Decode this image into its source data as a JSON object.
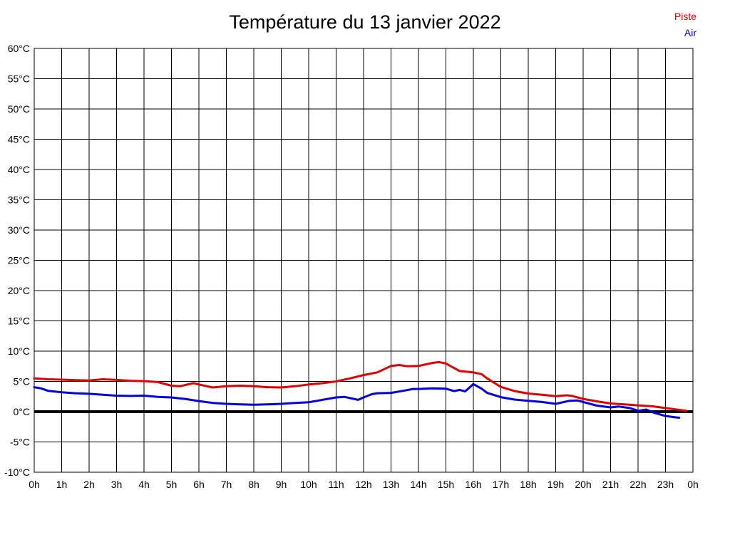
{
  "chart_data": {
    "type": "line",
    "title": "Température du 13 janvier 2022",
    "xlabel": "",
    "ylabel": "",
    "xlim": [
      0,
      24
    ],
    "ylim": [
      -10,
      60
    ],
    "y_step": 5,
    "grid": true,
    "zero_line": true,
    "legend_position": "top-right",
    "x_ticks": [
      "0h",
      "1h",
      "2h",
      "3h",
      "4h",
      "5h",
      "6h",
      "7h",
      "8h",
      "9h",
      "10h",
      "11h",
      "12h",
      "13h",
      "14h",
      "15h",
      "16h",
      "17h",
      "18h",
      "19h",
      "20h",
      "21h",
      "22h",
      "23h",
      "0h"
    ],
    "y_ticks": [
      "60°C",
      "55°C",
      "50°C",
      "45°C",
      "40°C",
      "35°C",
      "30°C",
      "25°C",
      "20°C",
      "15°C",
      "10°C",
      "5°C",
      "0°C",
      "-5°C",
      "-10°C"
    ],
    "series": [
      {
        "name": "Piste",
        "color": "#e00000",
        "points": [
          [
            0,
            5.5
          ],
          [
            0.5,
            5.35
          ],
          [
            1,
            5.3
          ],
          [
            1.5,
            5.2
          ],
          [
            2,
            5.15
          ],
          [
            2.5,
            5.35
          ],
          [
            3,
            5.25
          ],
          [
            3.5,
            5.1
          ],
          [
            4,
            5.05
          ],
          [
            4.5,
            4.9
          ],
          [
            5,
            4.3
          ],
          [
            5.3,
            4.2
          ],
          [
            5.8,
            4.7
          ],
          [
            6,
            4.5
          ],
          [
            6.5,
            4.0
          ],
          [
            7,
            4.2
          ],
          [
            7.5,
            4.3
          ],
          [
            8,
            4.2
          ],
          [
            8.5,
            4.05
          ],
          [
            9,
            4.0
          ],
          [
            9.5,
            4.2
          ],
          [
            10,
            4.5
          ],
          [
            10.5,
            4.7
          ],
          [
            11,
            5.0
          ],
          [
            11.5,
            5.5
          ],
          [
            12,
            6.05
          ],
          [
            12.5,
            6.5
          ],
          [
            13,
            7.55
          ],
          [
            13.3,
            7.7
          ],
          [
            13.6,
            7.5
          ],
          [
            14,
            7.55
          ],
          [
            14.5,
            8.05
          ],
          [
            14.75,
            8.2
          ],
          [
            15,
            7.95
          ],
          [
            15.5,
            6.7
          ],
          [
            16,
            6.5
          ],
          [
            16.3,
            6.2
          ],
          [
            16.5,
            5.5
          ],
          [
            17,
            4.1
          ],
          [
            17.5,
            3.4
          ],
          [
            18,
            3.0
          ],
          [
            18.5,
            2.8
          ],
          [
            19,
            2.55
          ],
          [
            19.4,
            2.7
          ],
          [
            19.6,
            2.6
          ],
          [
            20,
            2.1
          ],
          [
            20.5,
            1.7
          ],
          [
            21,
            1.35
          ],
          [
            21.5,
            1.2
          ],
          [
            22,
            1.05
          ],
          [
            22.5,
            0.9
          ],
          [
            23,
            0.6
          ],
          [
            23.5,
            0.3
          ],
          [
            23.75,
            0.15
          ]
        ]
      },
      {
        "name": "Air",
        "color": "#0000e0",
        "points": [
          [
            0,
            4.05
          ],
          [
            0.25,
            3.85
          ],
          [
            0.5,
            3.45
          ],
          [
            1,
            3.2
          ],
          [
            1.5,
            3.05
          ],
          [
            2,
            2.95
          ],
          [
            2.5,
            2.8
          ],
          [
            3,
            2.65
          ],
          [
            3.5,
            2.6
          ],
          [
            4,
            2.65
          ],
          [
            4.5,
            2.45
          ],
          [
            5,
            2.35
          ],
          [
            5.5,
            2.1
          ],
          [
            6,
            1.75
          ],
          [
            6.5,
            1.45
          ],
          [
            7,
            1.3
          ],
          [
            7.5,
            1.2
          ],
          [
            8,
            1.15
          ],
          [
            8.5,
            1.2
          ],
          [
            9,
            1.3
          ],
          [
            9.5,
            1.45
          ],
          [
            10,
            1.55
          ],
          [
            10.5,
            1.95
          ],
          [
            11,
            2.35
          ],
          [
            11.3,
            2.45
          ],
          [
            11.8,
            1.95
          ],
          [
            12,
            2.35
          ],
          [
            12.3,
            2.9
          ],
          [
            12.5,
            3.05
          ],
          [
            13,
            3.1
          ],
          [
            13.5,
            3.5
          ],
          [
            13.8,
            3.75
          ],
          [
            14,
            3.75
          ],
          [
            14.5,
            3.85
          ],
          [
            15,
            3.8
          ],
          [
            15.3,
            3.4
          ],
          [
            15.5,
            3.6
          ],
          [
            15.7,
            3.35
          ],
          [
            16,
            4.55
          ],
          [
            16.3,
            3.8
          ],
          [
            16.5,
            3.1
          ],
          [
            17,
            2.4
          ],
          [
            17.5,
            2.0
          ],
          [
            18,
            1.8
          ],
          [
            18.5,
            1.6
          ],
          [
            19,
            1.3
          ],
          [
            19.5,
            1.8
          ],
          [
            19.8,
            1.85
          ],
          [
            20,
            1.6
          ],
          [
            20.5,
            1.0
          ],
          [
            21,
            0.7
          ],
          [
            21.3,
            0.85
          ],
          [
            21.7,
            0.6
          ],
          [
            22,
            0.15
          ],
          [
            22.3,
            0.35
          ],
          [
            22.6,
            -0.2
          ],
          [
            23,
            -0.7
          ],
          [
            23.3,
            -0.9
          ],
          [
            23.5,
            -1.0
          ]
        ]
      }
    ]
  }
}
